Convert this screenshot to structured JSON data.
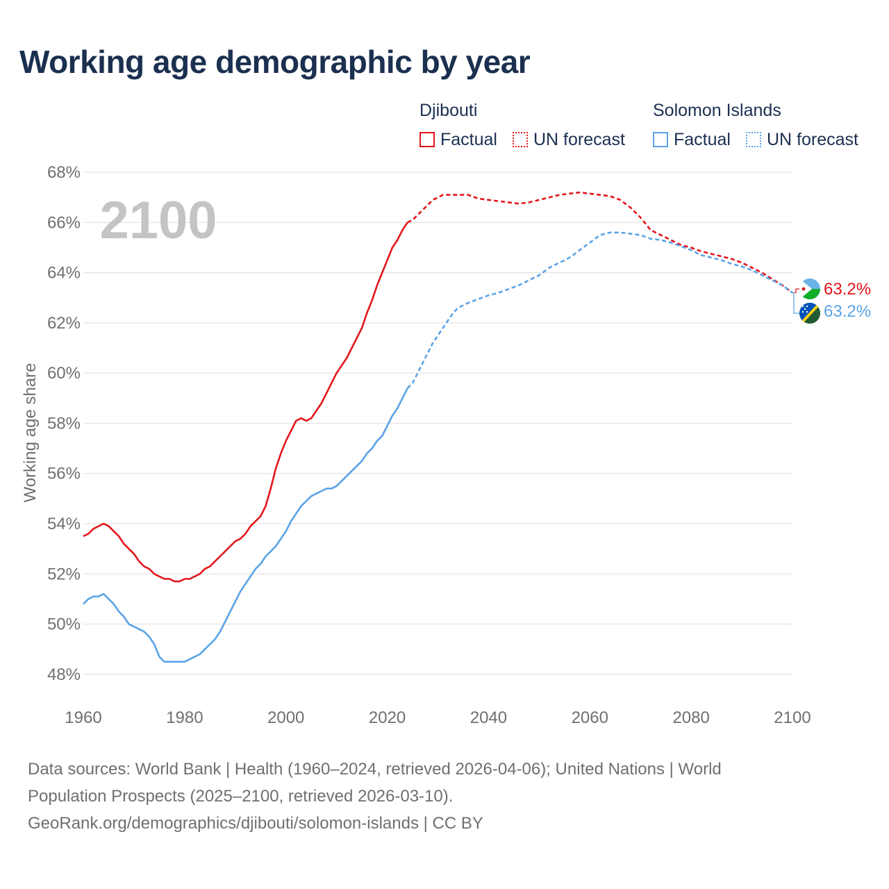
{
  "title": "Working age demographic by year",
  "legend": {
    "groups": [
      {
        "name": "Djibouti",
        "color": "#e3161b",
        "items": [
          {
            "label": "Factual",
            "style": "solid"
          },
          {
            "label": "UN forecast",
            "style": "dotted"
          }
        ]
      },
      {
        "name": "Solomon Islands",
        "color": "#5aa3e6",
        "items": [
          {
            "label": "Factual",
            "style": "solid"
          },
          {
            "label": "UN forecast",
            "style": "dotted"
          }
        ]
      }
    ]
  },
  "chart_data": {
    "type": "line",
    "title": "Working age demographic by year",
    "xlabel": "",
    "ylabel": "Working age share",
    "xlim": [
      1960,
      2100
    ],
    "ylim": [
      47,
      68.5
    ],
    "x_ticks": [
      "1960",
      "1980",
      "2000",
      "2020",
      "2040",
      "2060",
      "2080",
      "2100"
    ],
    "y_ticks": [
      "48%",
      "50%",
      "52%",
      "54%",
      "56%",
      "58%",
      "60%",
      "62%",
      "64%",
      "66%",
      "68%"
    ],
    "year_watermark": "2100",
    "grid": true,
    "forecast_start_year": 2024,
    "series": [
      {
        "name": "Djibouti",
        "color": "#e3161b",
        "end_label": "63.2%",
        "points": [
          [
            1960,
            53.5
          ],
          [
            1961,
            53.6
          ],
          [
            1962,
            53.8
          ],
          [
            1963,
            53.9
          ],
          [
            1964,
            54.0
          ],
          [
            1965,
            53.9
          ],
          [
            1966,
            53.7
          ],
          [
            1967,
            53.5
          ],
          [
            1968,
            53.2
          ],
          [
            1969,
            53.0
          ],
          [
            1970,
            52.8
          ],
          [
            1971,
            52.5
          ],
          [
            1972,
            52.3
          ],
          [
            1973,
            52.2
          ],
          [
            1974,
            52.0
          ],
          [
            1975,
            51.9
          ],
          [
            1976,
            51.8
          ],
          [
            1977,
            51.8
          ],
          [
            1978,
            51.7
          ],
          [
            1979,
            51.7
          ],
          [
            1980,
            51.8
          ],
          [
            1981,
            51.8
          ],
          [
            1982,
            51.9
          ],
          [
            1983,
            52.0
          ],
          [
            1984,
            52.2
          ],
          [
            1985,
            52.3
          ],
          [
            1986,
            52.5
          ],
          [
            1987,
            52.7
          ],
          [
            1988,
            52.9
          ],
          [
            1989,
            53.1
          ],
          [
            1990,
            53.3
          ],
          [
            1991,
            53.4
          ],
          [
            1992,
            53.6
          ],
          [
            1993,
            53.9
          ],
          [
            1994,
            54.1
          ],
          [
            1995,
            54.3
          ],
          [
            1996,
            54.7
          ],
          [
            1997,
            55.4
          ],
          [
            1998,
            56.2
          ],
          [
            1999,
            56.8
          ],
          [
            2000,
            57.3
          ],
          [
            2001,
            57.7
          ],
          [
            2002,
            58.1
          ],
          [
            2003,
            58.2
          ],
          [
            2004,
            58.1
          ],
          [
            2005,
            58.2
          ],
          [
            2006,
            58.5
          ],
          [
            2007,
            58.8
          ],
          [
            2008,
            59.2
          ],
          [
            2009,
            59.6
          ],
          [
            2010,
            60.0
          ],
          [
            2011,
            60.3
          ],
          [
            2012,
            60.6
          ],
          [
            2013,
            61.0
          ],
          [
            2014,
            61.4
          ],
          [
            2015,
            61.8
          ],
          [
            2016,
            62.4
          ],
          [
            2017,
            62.9
          ],
          [
            2018,
            63.5
          ],
          [
            2019,
            64.0
          ],
          [
            2020,
            64.5
          ],
          [
            2021,
            65.0
          ],
          [
            2022,
            65.3
          ],
          [
            2023,
            65.7
          ],
          [
            2024,
            66.0
          ],
          [
            2025,
            66.1
          ],
          [
            2026,
            66.3
          ],
          [
            2027,
            66.5
          ],
          [
            2028,
            66.7
          ],
          [
            2029,
            66.9
          ],
          [
            2030,
            67.0
          ],
          [
            2031,
            67.1
          ],
          [
            2032,
            67.1
          ],
          [
            2034,
            67.1
          ],
          [
            2036,
            67.1
          ],
          [
            2038,
            66.95
          ],
          [
            2040,
            66.9
          ],
          [
            2042,
            66.85
          ],
          [
            2044,
            66.8
          ],
          [
            2046,
            66.75
          ],
          [
            2048,
            66.8
          ],
          [
            2050,
            66.9
          ],
          [
            2052,
            67.0
          ],
          [
            2054,
            67.1
          ],
          [
            2056,
            67.15
          ],
          [
            2058,
            67.2
          ],
          [
            2060,
            67.15
          ],
          [
            2062,
            67.1
          ],
          [
            2064,
            67.05
          ],
          [
            2066,
            66.9
          ],
          [
            2068,
            66.6
          ],
          [
            2070,
            66.2
          ],
          [
            2072,
            65.7
          ],
          [
            2074,
            65.5
          ],
          [
            2076,
            65.3
          ],
          [
            2078,
            65.1
          ],
          [
            2080,
            65.0
          ],
          [
            2082,
            64.85
          ],
          [
            2084,
            64.75
          ],
          [
            2086,
            64.65
          ],
          [
            2088,
            64.55
          ],
          [
            2090,
            64.4
          ],
          [
            2092,
            64.2
          ],
          [
            2094,
            64.0
          ],
          [
            2096,
            63.75
          ],
          [
            2098,
            63.5
          ],
          [
            2100,
            63.2
          ]
        ]
      },
      {
        "name": "Solomon Islands",
        "color": "#5aa3e6",
        "end_label": "63.2%",
        "points": [
          [
            1960,
            50.8
          ],
          [
            1961,
            51.0
          ],
          [
            1962,
            51.1
          ],
          [
            1963,
            51.1
          ],
          [
            1964,
            51.2
          ],
          [
            1965,
            51.0
          ],
          [
            1966,
            50.8
          ],
          [
            1967,
            50.5
          ],
          [
            1968,
            50.3
          ],
          [
            1969,
            50.0
          ],
          [
            1970,
            49.9
          ],
          [
            1971,
            49.8
          ],
          [
            1972,
            49.7
          ],
          [
            1973,
            49.5
          ],
          [
            1974,
            49.2
          ],
          [
            1975,
            48.7
          ],
          [
            1976,
            48.5
          ],
          [
            1977,
            48.5
          ],
          [
            1978,
            48.5
          ],
          [
            1979,
            48.5
          ],
          [
            1980,
            48.5
          ],
          [
            1981,
            48.6
          ],
          [
            1982,
            48.7
          ],
          [
            1983,
            48.8
          ],
          [
            1984,
            49.0
          ],
          [
            1985,
            49.2
          ],
          [
            1986,
            49.4
          ],
          [
            1987,
            49.7
          ],
          [
            1988,
            50.1
          ],
          [
            1989,
            50.5
          ],
          [
            1990,
            50.9
          ],
          [
            1991,
            51.3
          ],
          [
            1992,
            51.6
          ],
          [
            1993,
            51.9
          ],
          [
            1994,
            52.2
          ],
          [
            1995,
            52.4
          ],
          [
            1996,
            52.7
          ],
          [
            1997,
            52.9
          ],
          [
            1998,
            53.1
          ],
          [
            1999,
            53.4
          ],
          [
            2000,
            53.7
          ],
          [
            2001,
            54.1
          ],
          [
            2002,
            54.4
          ],
          [
            2003,
            54.7
          ],
          [
            2004,
            54.9
          ],
          [
            2005,
            55.1
          ],
          [
            2006,
            55.2
          ],
          [
            2007,
            55.3
          ],
          [
            2008,
            55.4
          ],
          [
            2009,
            55.4
          ],
          [
            2010,
            55.5
          ],
          [
            2011,
            55.7
          ],
          [
            2012,
            55.9
          ],
          [
            2013,
            56.1
          ],
          [
            2014,
            56.3
          ],
          [
            2015,
            56.5
          ],
          [
            2016,
            56.8
          ],
          [
            2017,
            57.0
          ],
          [
            2018,
            57.3
          ],
          [
            2019,
            57.5
          ],
          [
            2020,
            57.9
          ],
          [
            2021,
            58.3
          ],
          [
            2022,
            58.6
          ],
          [
            2023,
            59.0
          ],
          [
            2024,
            59.4
          ],
          [
            2025,
            59.6
          ],
          [
            2026,
            60.0
          ],
          [
            2027,
            60.4
          ],
          [
            2028,
            60.8
          ],
          [
            2029,
            61.2
          ],
          [
            2030,
            61.5
          ],
          [
            2031,
            61.8
          ],
          [
            2032,
            62.1
          ],
          [
            2033,
            62.4
          ],
          [
            2034,
            62.6
          ],
          [
            2036,
            62.8
          ],
          [
            2038,
            62.95
          ],
          [
            2040,
            63.1
          ],
          [
            2042,
            63.2
          ],
          [
            2044,
            63.35
          ],
          [
            2046,
            63.5
          ],
          [
            2048,
            63.7
          ],
          [
            2050,
            63.9
          ],
          [
            2052,
            64.2
          ],
          [
            2054,
            64.4
          ],
          [
            2056,
            64.6
          ],
          [
            2058,
            64.9
          ],
          [
            2060,
            65.2
          ],
          [
            2062,
            65.5
          ],
          [
            2064,
            65.6
          ],
          [
            2066,
            65.6
          ],
          [
            2068,
            65.55
          ],
          [
            2070,
            65.5
          ],
          [
            2072,
            65.35
          ],
          [
            2074,
            65.3
          ],
          [
            2076,
            65.2
          ],
          [
            2078,
            65.05
          ],
          [
            2080,
            64.9
          ],
          [
            2082,
            64.7
          ],
          [
            2084,
            64.6
          ],
          [
            2086,
            64.5
          ],
          [
            2088,
            64.35
          ],
          [
            2090,
            64.25
          ],
          [
            2092,
            64.1
          ],
          [
            2094,
            63.9
          ],
          [
            2096,
            63.7
          ],
          [
            2098,
            63.5
          ],
          [
            2100,
            63.2
          ]
        ]
      }
    ]
  },
  "footer": {
    "line1": "Data sources: World Bank | Health (1960–2024, retrieved 2026-04-06); United Nations | World",
    "line2": "Population Prospects (2025–2100, retrieved 2026-03-10).",
    "line3": "GeoRank.org/demographics/djibouti/solomon-islands | CC BY"
  },
  "colors": {
    "title": "#1b3050",
    "grid": "#e3e3e3",
    "axis_text": "#6f6f6f",
    "watermark": "#c4c4c4"
  }
}
